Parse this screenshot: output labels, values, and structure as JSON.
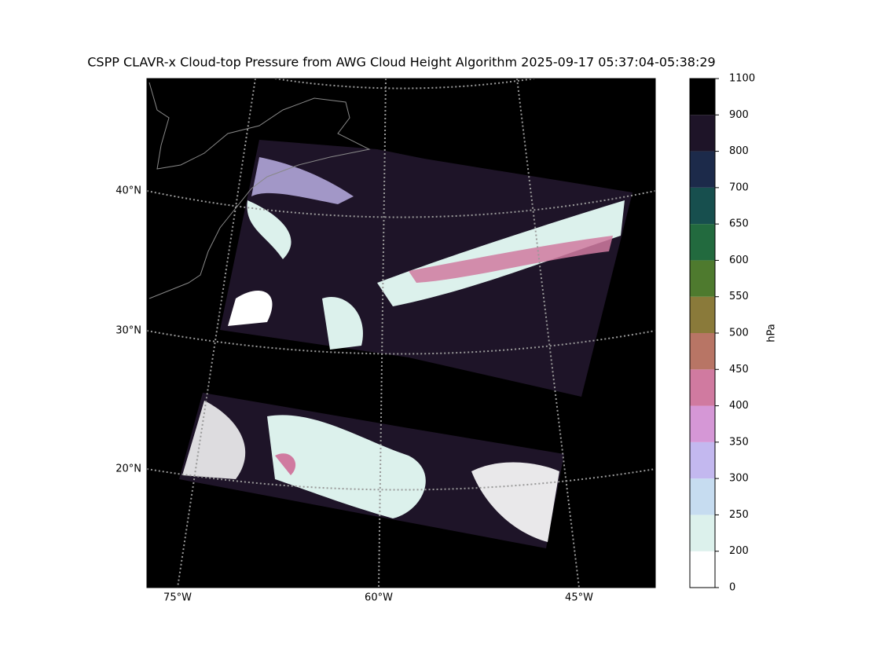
{
  "title": "CSPP CLAVR-x Cloud-top Pressure from AWG Cloud Height Algorithm 2025-09-17 05:37:04-05:38:29",
  "map": {
    "lat_labels": [
      "40°N",
      "30°N",
      "20°N"
    ],
    "lon_labels": [
      "75°W",
      "60°W",
      "45°W"
    ]
  },
  "colorbar": {
    "label": "hPa",
    "boundaries": [
      0,
      200,
      250,
      300,
      350,
      400,
      450,
      500,
      550,
      600,
      650,
      700,
      800,
      900,
      1100
    ],
    "colors": [
      "#ffffff",
      "#dcf1ec",
      "#c6dcf0",
      "#c3b8ef",
      "#d597d6",
      "#d07aa0",
      "#b87565",
      "#8a7a3a",
      "#4e7a2e",
      "#226a3e",
      "#174f4e",
      "#1c2a4a",
      "#1e1428",
      "#000000"
    ]
  }
}
